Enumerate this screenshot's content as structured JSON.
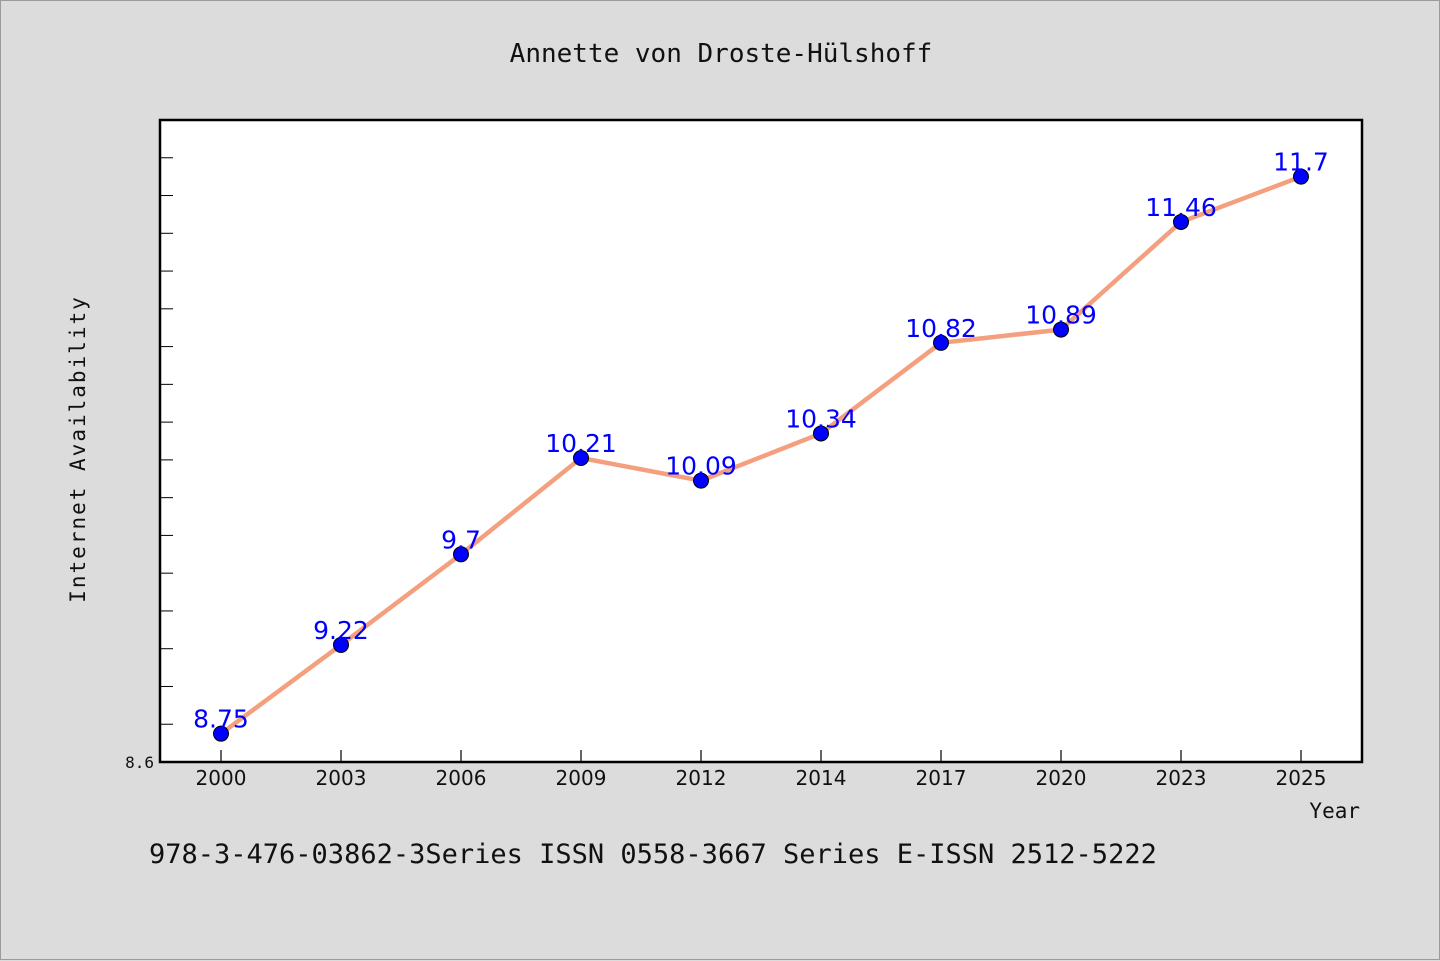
{
  "chart_data": {
    "type": "line",
    "title": "Annette von Droste-Hülshoff",
    "xlabel": "Year",
    "ylabel": "Internet Availability",
    "categories": [
      "2000",
      "2003",
      "2006",
      "2009",
      "2012",
      "2014",
      "2017",
      "2020",
      "2023",
      "2025"
    ],
    "series": [
      {
        "values": [
          8.75,
          9.22,
          9.7,
          10.21,
          10.09,
          10.34,
          10.82,
          10.89,
          11.46,
          11.7
        ],
        "labels": [
          "8.75",
          "9.22",
          "9.7",
          "10.21",
          "10.09",
          "10.34",
          "10.82",
          "10.89",
          "11.46",
          "11.7"
        ]
      }
    ],
    "ylim": [
      8.6,
      12.0
    ],
    "yticks": [
      "8.6"
    ],
    "grid": false,
    "line_color": "#f4a07f",
    "marker_color": "#0000ff",
    "label_color": "#0000ff"
  },
  "footer": {
    "text": "978-3-476-03862-3Series ISSN 0558-3667 Series E-ISSN 2512-5222"
  }
}
